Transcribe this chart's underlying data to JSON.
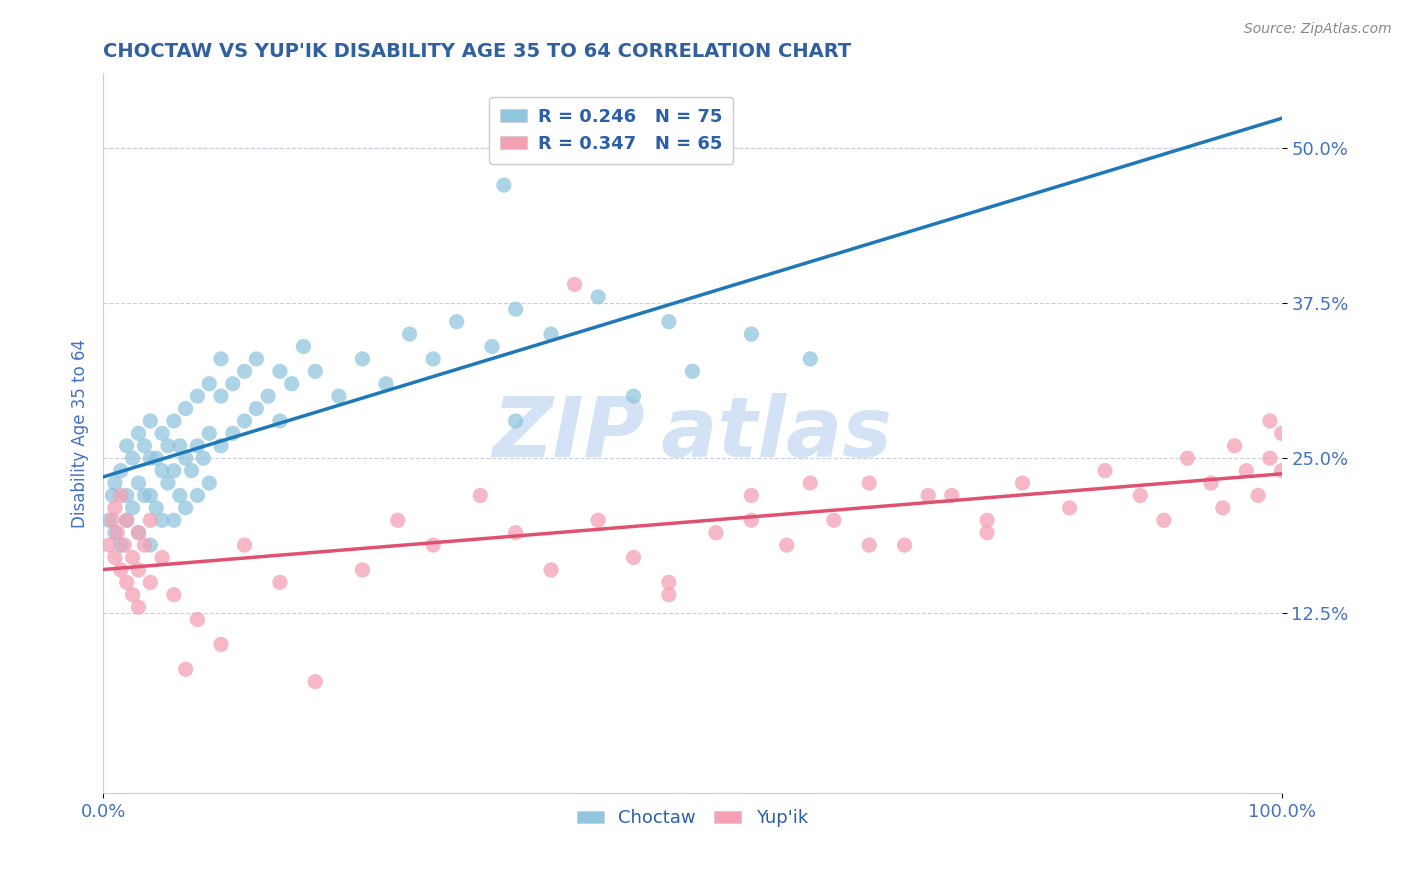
{
  "title": "CHOCTAW VS YUP'IK DISABILITY AGE 35 TO 64 CORRELATION CHART",
  "source": "Source: ZipAtlas.com",
  "ylabel": "Disability Age 35 to 64",
  "xlim": [
    0.0,
    1.0
  ],
  "ylim": [
    -0.02,
    0.56
  ],
  "yticks": [
    0.125,
    0.25,
    0.375,
    0.5
  ],
  "ytick_labels": [
    "12.5%",
    "25.0%",
    "37.5%",
    "50.0%"
  ],
  "xticks": [
    0.0,
    1.0
  ],
  "xtick_labels": [
    "0.0%",
    "100.0%"
  ],
  "choctaw_R": 0.246,
  "choctaw_N": 75,
  "yupik_R": 0.347,
  "yupik_N": 65,
  "blue_color": "#92c5de",
  "pink_color": "#f4a0b5",
  "blue_line_color": "#1f78b8",
  "pink_line_color": "#e05070",
  "title_color": "#3060a0",
  "axis_color": "#4472c4",
  "watermark_color": "#d0dff5",
  "background_color": "#ffffff",
  "grid_color": "#c8d0e0",
  "legend_text_color": "#2b5fa8",
  "title_fontsize": 14,
  "choctaw_x": [
    0.005,
    0.008,
    0.01,
    0.01,
    0.015,
    0.015,
    0.02,
    0.02,
    0.02,
    0.025,
    0.025,
    0.03,
    0.03,
    0.03,
    0.035,
    0.035,
    0.04,
    0.04,
    0.04,
    0.04,
    0.045,
    0.045,
    0.05,
    0.05,
    0.05,
    0.055,
    0.055,
    0.06,
    0.06,
    0.06,
    0.065,
    0.065,
    0.07,
    0.07,
    0.07,
    0.075,
    0.08,
    0.08,
    0.08,
    0.085,
    0.09,
    0.09,
    0.09,
    0.1,
    0.1,
    0.1,
    0.11,
    0.11,
    0.12,
    0.12,
    0.13,
    0.13,
    0.14,
    0.15,
    0.15,
    0.16,
    0.17,
    0.18,
    0.2,
    0.22,
    0.24,
    0.26,
    0.28,
    0.3,
    0.33,
    0.35,
    0.38,
    0.42,
    0.48,
    0.34,
    0.5,
    0.55,
    0.6,
    0.35,
    0.45
  ],
  "choctaw_y": [
    0.2,
    0.22,
    0.19,
    0.23,
    0.18,
    0.24,
    0.2,
    0.26,
    0.22,
    0.21,
    0.25,
    0.19,
    0.23,
    0.27,
    0.22,
    0.26,
    0.18,
    0.22,
    0.25,
    0.28,
    0.21,
    0.25,
    0.2,
    0.24,
    0.27,
    0.23,
    0.26,
    0.2,
    0.24,
    0.28,
    0.22,
    0.26,
    0.21,
    0.25,
    0.29,
    0.24,
    0.22,
    0.26,
    0.3,
    0.25,
    0.23,
    0.27,
    0.31,
    0.26,
    0.3,
    0.33,
    0.27,
    0.31,
    0.28,
    0.32,
    0.29,
    0.33,
    0.3,
    0.28,
    0.32,
    0.31,
    0.34,
    0.32,
    0.3,
    0.33,
    0.31,
    0.35,
    0.33,
    0.36,
    0.34,
    0.37,
    0.35,
    0.38,
    0.36,
    0.47,
    0.32,
    0.35,
    0.33,
    0.28,
    0.3
  ],
  "yupik_x": [
    0.005,
    0.008,
    0.01,
    0.01,
    0.012,
    0.015,
    0.015,
    0.018,
    0.02,
    0.02,
    0.025,
    0.025,
    0.03,
    0.03,
    0.03,
    0.035,
    0.04,
    0.04,
    0.05,
    0.06,
    0.07,
    0.08,
    0.1,
    0.12,
    0.15,
    0.18,
    0.22,
    0.25,
    0.28,
    0.32,
    0.35,
    0.38,
    0.42,
    0.45,
    0.48,
    0.52,
    0.55,
    0.58,
    0.62,
    0.65,
    0.68,
    0.72,
    0.75,
    0.78,
    0.82,
    0.85,
    0.88,
    0.9,
    0.92,
    0.94,
    0.95,
    0.96,
    0.97,
    0.98,
    0.99,
    0.99,
    1.0,
    1.0,
    0.55,
    0.6,
    0.65,
    0.7,
    0.75,
    0.48,
    0.4
  ],
  "yupik_y": [
    0.18,
    0.2,
    0.17,
    0.21,
    0.19,
    0.16,
    0.22,
    0.18,
    0.15,
    0.2,
    0.17,
    0.14,
    0.19,
    0.16,
    0.13,
    0.18,
    0.15,
    0.2,
    0.17,
    0.14,
    0.08,
    0.12,
    0.1,
    0.18,
    0.15,
    0.07,
    0.16,
    0.2,
    0.18,
    0.22,
    0.19,
    0.16,
    0.2,
    0.17,
    0.15,
    0.19,
    0.22,
    0.18,
    0.2,
    0.23,
    0.18,
    0.22,
    0.2,
    0.23,
    0.21,
    0.24,
    0.22,
    0.2,
    0.25,
    0.23,
    0.21,
    0.26,
    0.24,
    0.22,
    0.25,
    0.28,
    0.24,
    0.27,
    0.2,
    0.23,
    0.18,
    0.22,
    0.19,
    0.14,
    0.39
  ]
}
